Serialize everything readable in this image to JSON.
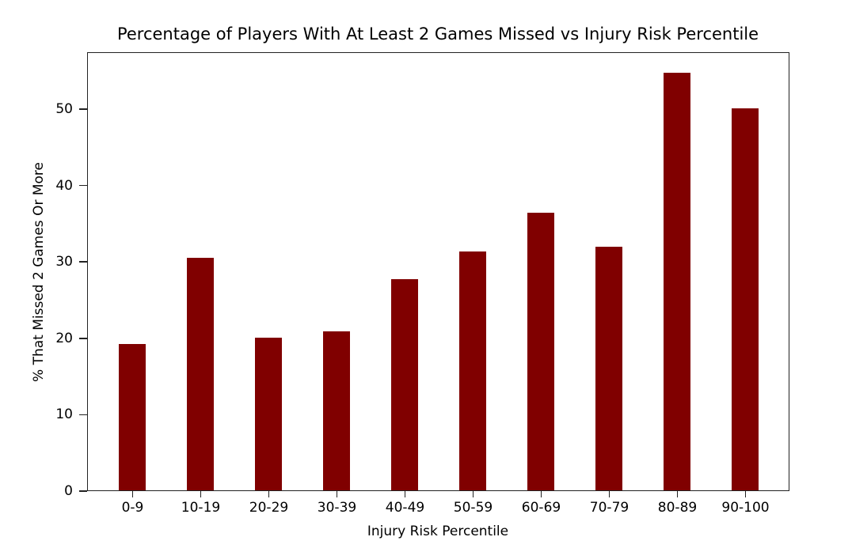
{
  "chart_data": {
    "type": "bar",
    "title": "Percentage of Players With At Least 2 Games Missed vs Injury Risk Percentile",
    "xlabel": "Injury Risk Percentile",
    "ylabel": "% That Missed 2 Games Or More",
    "categories": [
      "0-9",
      "10-19",
      "20-29",
      "30-39",
      "40-49",
      "50-59",
      "60-69",
      "70-79",
      "80-89",
      "90-100"
    ],
    "values": [
      19.2,
      30.4,
      20.0,
      20.8,
      27.6,
      31.3,
      36.3,
      31.9,
      54.7,
      50.0
    ],
    "yticks": [
      "0",
      "10",
      "20",
      "30",
      "40",
      "50"
    ],
    "ylim": [
      0,
      57.5
    ],
    "grid": false,
    "legend": null,
    "bar_color": "#800000"
  }
}
